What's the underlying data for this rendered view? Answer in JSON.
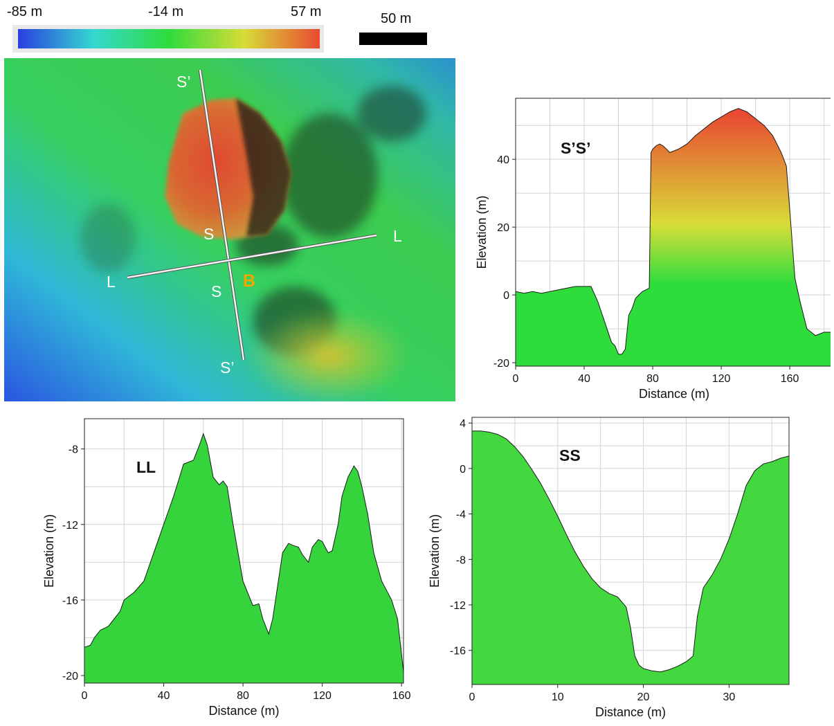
{
  "colorbar": {
    "labels": [
      "-85 m",
      "-14 m",
      "57 m"
    ],
    "colors": [
      "#2a3fe0",
      "#35d8d0",
      "#2edc3c",
      "#d8dc38",
      "#e84a32"
    ]
  },
  "scale_bar": {
    "label": "50 m"
  },
  "map": {
    "labels": {
      "s_prime_top": "S’",
      "s_prime_bottom": "S’",
      "s_upper": "S",
      "s_lower": "S",
      "l_left": "L",
      "l_right": "L",
      "b": "B"
    },
    "b_color": "#f0a800"
  },
  "chart_data": [
    {
      "type": "area",
      "title": "S’S’",
      "xlabel": "Distance (m)",
      "ylabel": "Elevation (m)",
      "xlim": [
        0,
        185
      ],
      "ylim": [
        -21,
        58
      ],
      "xticks": [
        0,
        40,
        80,
        120,
        160
      ],
      "yticks": [
        -20,
        0,
        20,
        40
      ],
      "x": [
        0,
        5,
        10,
        15,
        20,
        25,
        30,
        35,
        40,
        44,
        48,
        52,
        56,
        58,
        60,
        62,
        64,
        66,
        68,
        70,
        72,
        74,
        76,
        78,
        79,
        80,
        82,
        84,
        86,
        88,
        90,
        95,
        100,
        105,
        110,
        115,
        120,
        125,
        130,
        135,
        140,
        145,
        150,
        155,
        158,
        160,
        163,
        166,
        170,
        175,
        180,
        185
      ],
      "y": [
        1,
        0.5,
        1,
        0.5,
        1,
        1.5,
        2,
        2.5,
        2.5,
        2.5,
        -2,
        -8,
        -14,
        -15,
        -17.5,
        -17.5,
        -16,
        -6,
        -4,
        -1,
        0,
        1,
        1.5,
        2,
        42,
        43,
        44,
        44.5,
        44,
        43,
        42,
        43,
        44.5,
        47,
        49,
        51,
        52.5,
        54,
        55,
        54,
        52,
        50,
        47,
        42,
        38,
        25,
        5,
        -2,
        -10,
        -12,
        -11,
        -11
      ],
      "fill_gradient": [
        "#2edc3c",
        "#d8dc38",
        "#e84a32"
      ]
    },
    {
      "type": "area",
      "title": "LL",
      "xlabel": "Distance (m)",
      "ylabel": "Elevation (m)",
      "xlim": [
        0,
        161
      ],
      "ylim": [
        -20.4,
        -6.4
      ],
      "xticks": [
        0,
        40,
        80,
        120,
        160
      ],
      "yticks": [
        -20,
        -16,
        -12,
        -8
      ],
      "x": [
        0,
        3,
        5,
        8,
        12,
        15,
        18,
        20,
        25,
        30,
        35,
        40,
        45,
        48,
        50,
        55,
        58,
        60,
        62,
        65,
        68,
        70,
        72,
        75,
        80,
        85,
        88,
        90,
        93,
        95,
        100,
        103,
        105,
        108,
        110,
        113,
        115,
        118,
        120,
        123,
        125,
        128,
        130,
        133,
        136,
        138,
        140,
        143,
        146,
        150,
        155,
        158,
        161
      ],
      "y": [
        -18.5,
        -18.4,
        -18,
        -17.6,
        -17.4,
        -17,
        -16.6,
        -16,
        -15.6,
        -15,
        -13.5,
        -12,
        -10.5,
        -9.5,
        -8.8,
        -8.6,
        -7.8,
        -7.2,
        -7.8,
        -9.5,
        -9.9,
        -9.7,
        -10,
        -12,
        -15,
        -16.3,
        -16.2,
        -17,
        -17.8,
        -17,
        -13.5,
        -13,
        -13.1,
        -13.2,
        -13.6,
        -14,
        -13.2,
        -12.8,
        -12.9,
        -13.5,
        -13.4,
        -12,
        -10.5,
        -9.5,
        -8.9,
        -9.2,
        -10,
        -11.5,
        -13.5,
        -15,
        -16,
        -17,
        -19.8
      ],
      "fill_color": "#36d43c"
    },
    {
      "type": "area",
      "title": "SS",
      "xlabel": "Distance (m)",
      "ylabel": "Elevation (m)",
      "xlim": [
        0,
        37
      ],
      "ylim": [
        -19,
        4.5
      ],
      "xticks": [
        0,
        10,
        20,
        30
      ],
      "yticks": [
        -16,
        -12,
        -8,
        -4,
        0,
        4
      ],
      "x": [
        0,
        1,
        2,
        3,
        4,
        5,
        6,
        7,
        8,
        9,
        10,
        11,
        12,
        13,
        14,
        15,
        16,
        17,
        18,
        18.5,
        19,
        19.5,
        20,
        21,
        22,
        23,
        24,
        25,
        25.8,
        26.3,
        27,
        28,
        29,
        30,
        31,
        32,
        33,
        34,
        35,
        36,
        37
      ],
      "y": [
        3.3,
        3.3,
        3.2,
        3,
        2.6,
        1.9,
        1,
        -0.1,
        -1.3,
        -2.7,
        -4.2,
        -5.8,
        -7.3,
        -8.6,
        -9.7,
        -10.5,
        -11,
        -11.3,
        -12.2,
        -14,
        -16.5,
        -17.3,
        -17.6,
        -17.8,
        -17.9,
        -17.7,
        -17.4,
        -17,
        -16.5,
        -13,
        -10.5,
        -9.4,
        -8,
        -6.2,
        -4,
        -1.5,
        -0.2,
        0.4,
        0.6,
        0.9,
        1.1
      ],
      "fill_color": "#44d840"
    }
  ]
}
